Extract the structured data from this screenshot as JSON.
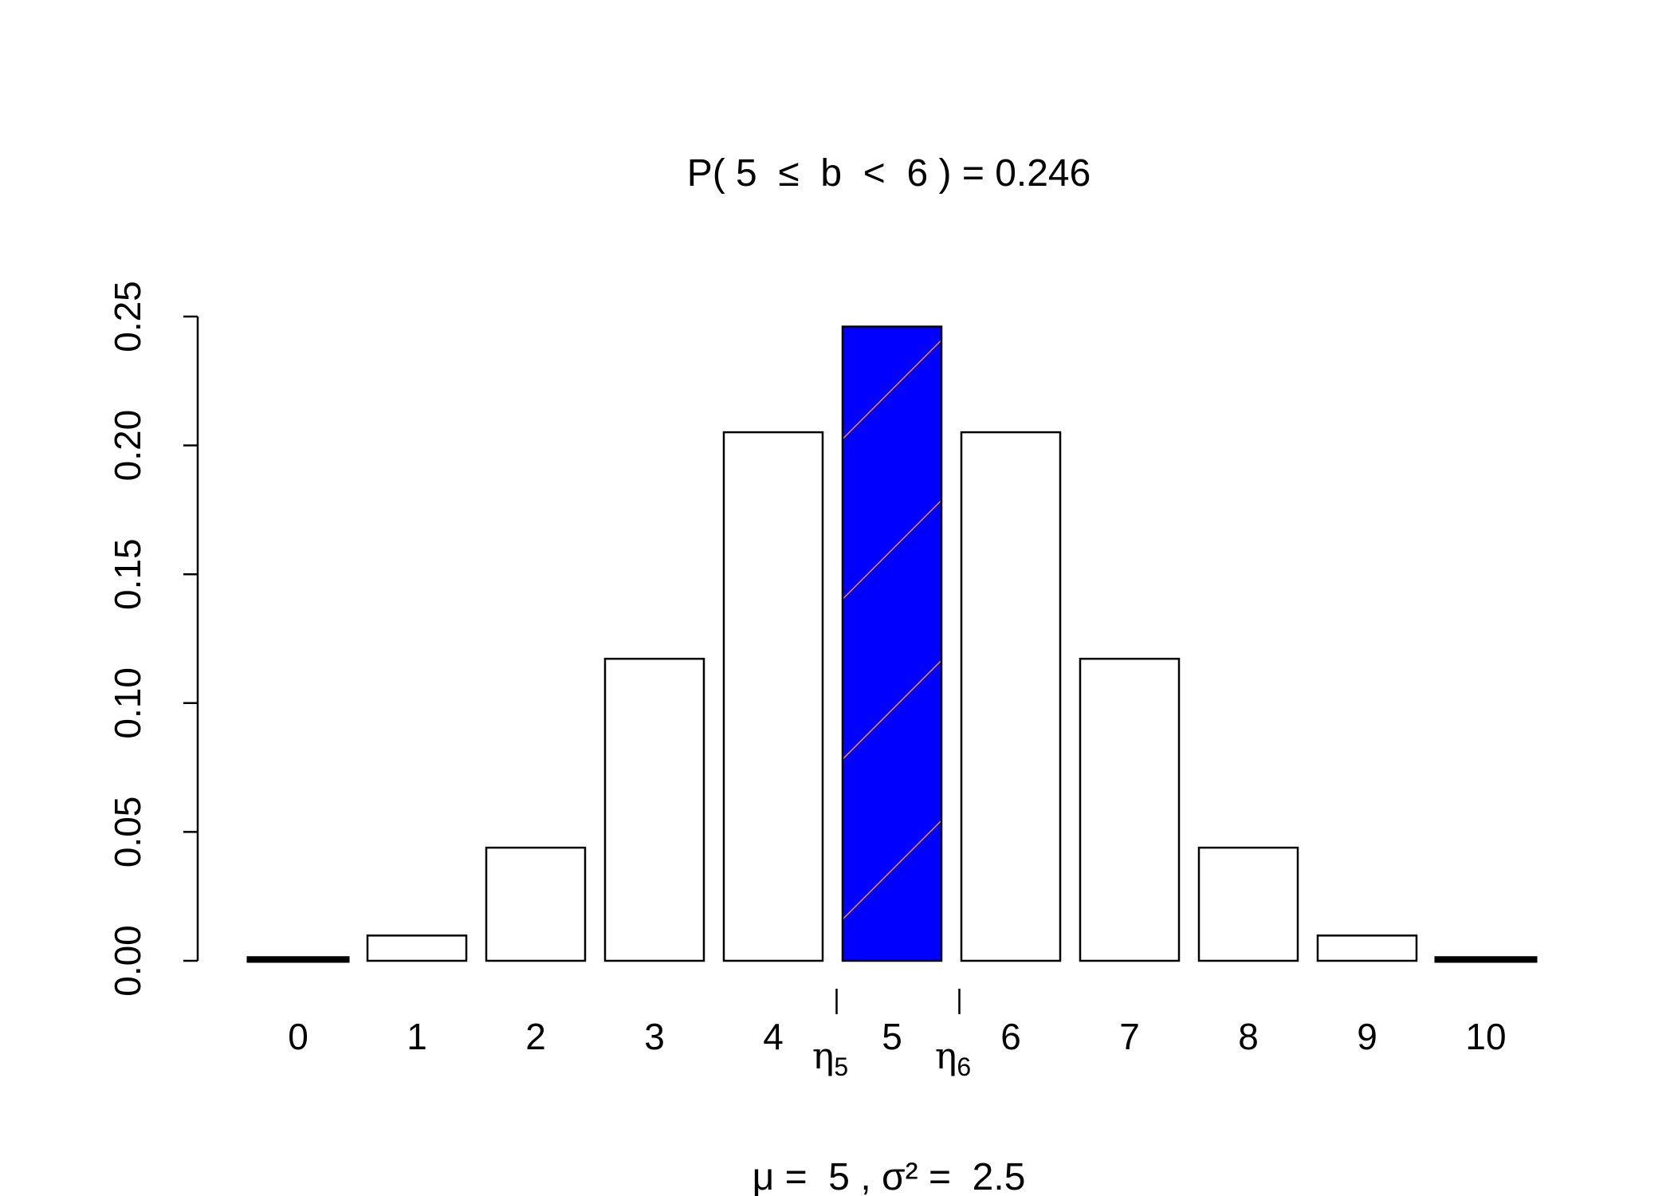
{
  "chart_data": {
    "type": "bar",
    "title": "P( 5  ≤  b  <  6 ) = 0.246",
    "subtitle": "μ =  5 , σ² =  2.5",
    "categories": [
      "0",
      "1",
      "2",
      "3",
      "4",
      "5",
      "6",
      "7",
      "8",
      "9",
      "10"
    ],
    "values": [
      0.001,
      0.0098,
      0.0439,
      0.1172,
      0.2051,
      0.2461,
      0.2051,
      0.1172,
      0.0439,
      0.0098,
      0.001
    ],
    "ylim": [
      0,
      0.25
    ],
    "yticks": [
      "0.00",
      "0.05",
      "0.10",
      "0.15",
      "0.20",
      "0.25"
    ],
    "highlight": {
      "category": "5",
      "fill": "#0000ff",
      "hatch_color": "#ff8c1a",
      "from_x": 5,
      "to_x": 6
    },
    "markers": [
      {
        "label": "η",
        "sub": "5",
        "x": 5
      },
      {
        "label": "η",
        "sub": "6",
        "x": 6
      }
    ],
    "grid": false,
    "legend": "none"
  }
}
